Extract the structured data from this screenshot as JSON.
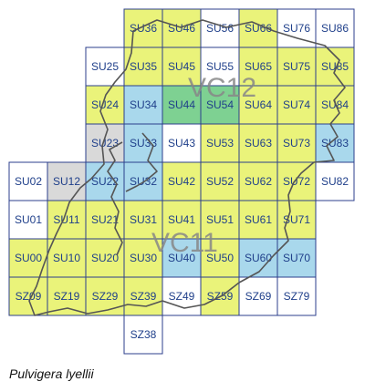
{
  "title": "Pulvigera lyellii",
  "vice_counties": [
    "VC12",
    "VC11"
  ],
  "colors": {
    "yellow": "#eaf37a",
    "blue": "#a9d8ec",
    "green": "#7ed192",
    "grey": "#d9d9d9",
    "white": "#ffffff",
    "grid": "#2c3f8c",
    "boundary": "#555555",
    "label": "#1f3f8a"
  },
  "squares": [
    {
      "label": "SU36",
      "fill": "yellow"
    },
    {
      "label": "SU46",
      "fill": "yellow"
    },
    {
      "label": "SU56",
      "fill": "white"
    },
    {
      "label": "SU66",
      "fill": "yellow"
    },
    {
      "label": "SU76",
      "fill": "white"
    },
    {
      "label": "SU86",
      "fill": "white"
    },
    {
      "label": "SU25",
      "fill": "white"
    },
    {
      "label": "SU35",
      "fill": "yellow"
    },
    {
      "label": "SU45",
      "fill": "yellow"
    },
    {
      "label": "SU55",
      "fill": "white"
    },
    {
      "label": "SU65",
      "fill": "yellow"
    },
    {
      "label": "SU75",
      "fill": "yellow"
    },
    {
      "label": "SU85",
      "fill": "yellow"
    },
    {
      "label": "SU24",
      "fill": "yellow"
    },
    {
      "label": "SU34",
      "fill": "blue"
    },
    {
      "label": "SU44",
      "fill": "green"
    },
    {
      "label": "SU54",
      "fill": "green"
    },
    {
      "label": "SU64",
      "fill": "yellow"
    },
    {
      "label": "SU74",
      "fill": "yellow"
    },
    {
      "label": "SU84",
      "fill": "yellow"
    },
    {
      "label": "SU23",
      "fill": "grey"
    },
    {
      "label": "SU33",
      "fill": "blue"
    },
    {
      "label": "SU43",
      "fill": "white"
    },
    {
      "label": "SU53",
      "fill": "yellow"
    },
    {
      "label": "SU63",
      "fill": "yellow"
    },
    {
      "label": "SU73",
      "fill": "yellow"
    },
    {
      "label": "SU83",
      "fill": "blue"
    },
    {
      "label": "SU02",
      "fill": "white"
    },
    {
      "label": "SU12",
      "fill": "grey"
    },
    {
      "label": "SU22",
      "fill": "blue"
    },
    {
      "label": "SU32",
      "fill": "blue"
    },
    {
      "label": "SU42",
      "fill": "yellow"
    },
    {
      "label": "SU52",
      "fill": "yellow"
    },
    {
      "label": "SU62",
      "fill": "yellow"
    },
    {
      "label": "SU72",
      "fill": "yellow"
    },
    {
      "label": "SU82",
      "fill": "white"
    },
    {
      "label": "SU01",
      "fill": "white"
    },
    {
      "label": "SU11",
      "fill": "yellow"
    },
    {
      "label": "SU21",
      "fill": "yellow"
    },
    {
      "label": "SU31",
      "fill": "yellow"
    },
    {
      "label": "SU41",
      "fill": "yellow"
    },
    {
      "label": "SU51",
      "fill": "yellow"
    },
    {
      "label": "SU61",
      "fill": "yellow"
    },
    {
      "label": "SU71",
      "fill": "yellow"
    },
    {
      "label": "SU00",
      "fill": "yellow"
    },
    {
      "label": "SU10",
      "fill": "yellow"
    },
    {
      "label": "SU20",
      "fill": "yellow"
    },
    {
      "label": "SU30",
      "fill": "yellow"
    },
    {
      "label": "SU40",
      "fill": "blue"
    },
    {
      "label": "SU50",
      "fill": "yellow"
    },
    {
      "label": "SU60",
      "fill": "blue"
    },
    {
      "label": "SU70",
      "fill": "blue"
    },
    {
      "label": "SZ09",
      "fill": "yellow"
    },
    {
      "label": "SZ19",
      "fill": "yellow"
    },
    {
      "label": "SZ29",
      "fill": "yellow"
    },
    {
      "label": "SZ39",
      "fill": "yellow"
    },
    {
      "label": "SZ49",
      "fill": "white"
    },
    {
      "label": "SZ59",
      "fill": "yellow"
    },
    {
      "label": "SZ69",
      "fill": "white"
    },
    {
      "label": "SZ79",
      "fill": "white"
    },
    {
      "label": "SZ38",
      "fill": "white"
    }
  ]
}
